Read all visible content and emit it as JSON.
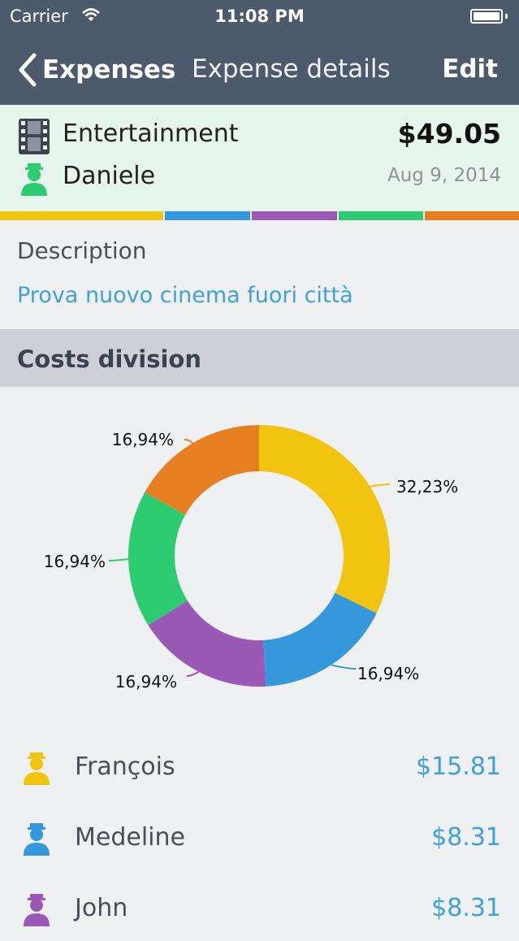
{
  "status_bar": {
    "carrier": "Carrier",
    "time": "11:08 PM"
  },
  "nav": {
    "back_label": "Expenses",
    "title": "Expense details",
    "edit_label": "Edit"
  },
  "expense": {
    "category": "Entertainment",
    "category_icon": "film-icon",
    "amount": "$49.05",
    "payer": "Daniele",
    "payer_color": "#2ecc71",
    "date": "Aug 9, 2014"
  },
  "color_strip": [
    "#f1c40f",
    "#3498db",
    "#9b59b6",
    "#2ecc71",
    "#e67e22"
  ],
  "description": {
    "label": "Description",
    "text": "Prova nuovo cinema fuori città"
  },
  "section": {
    "title": "Costs division"
  },
  "chart_data": {
    "type": "pie",
    "style": "donut",
    "labels": [
      "32,23%",
      "16,94%",
      "16,94%",
      "16,94%",
      "16,94%"
    ],
    "values": [
      32.23,
      16.94,
      16.94,
      16.94,
      16.94
    ],
    "colors": [
      "#f1c40f",
      "#3498db",
      "#9b59b6",
      "#2ecc71",
      "#e67e22"
    ]
  },
  "participants": [
    {
      "name": "François",
      "amount": "$15.81",
      "color": "#f1c40f"
    },
    {
      "name": "Medeline",
      "amount": "$8.31",
      "color": "#3498db"
    },
    {
      "name": "John",
      "amount": "$8.31",
      "color": "#9b59b6"
    }
  ]
}
